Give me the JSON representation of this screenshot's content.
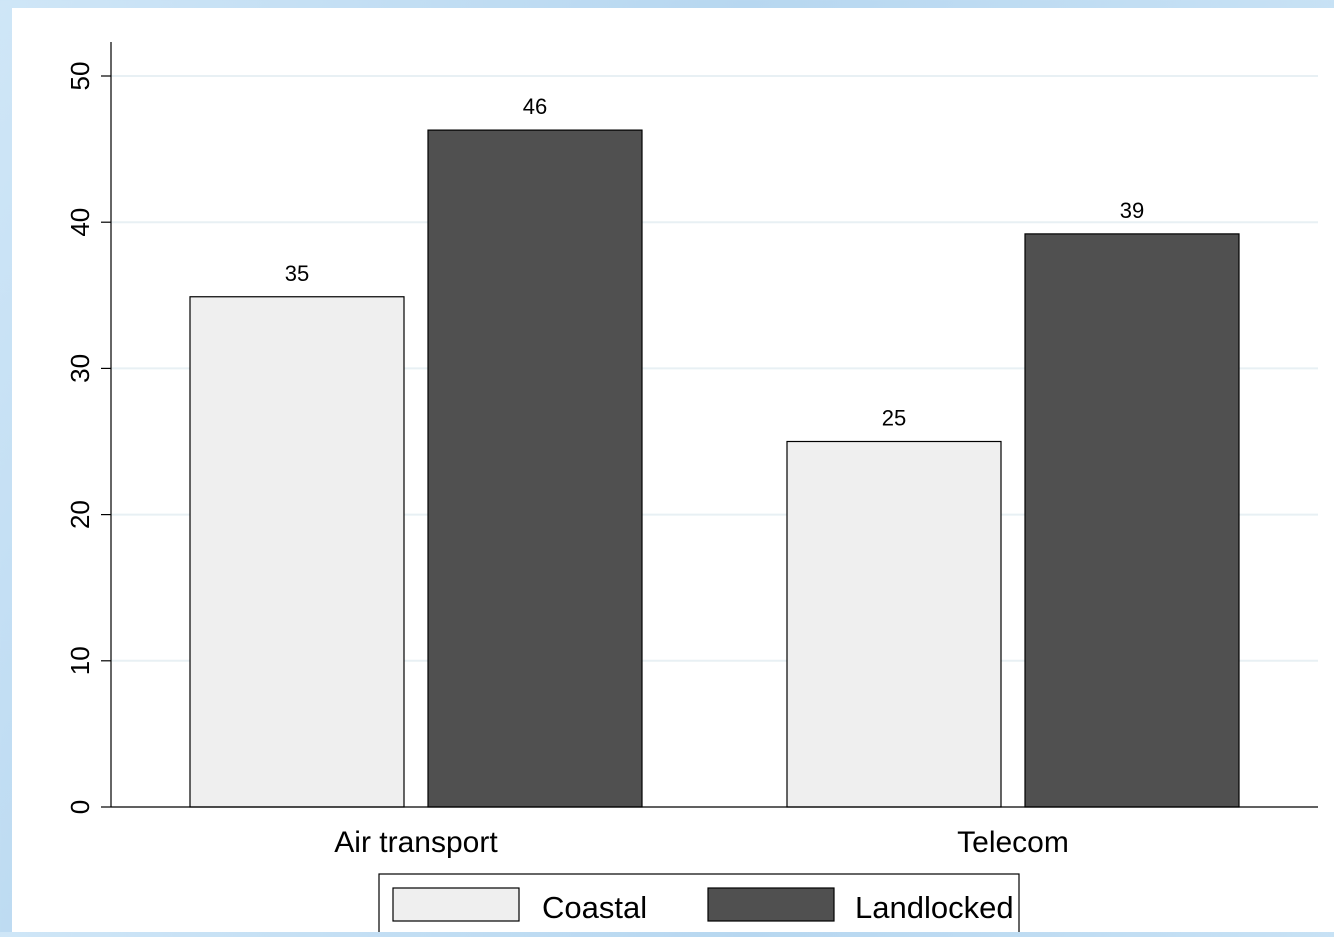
{
  "chart_data": {
    "type": "bar",
    "categories": [
      "Air transport",
      "Telecom"
    ],
    "series": [
      {
        "name": "Coastal",
        "values": [
          35,
          25
        ],
        "labels": [
          "35",
          "25"
        ],
        "color": "#efefef"
      },
      {
        "name": "Landlocked",
        "values": [
          46,
          39
        ],
        "labels": [
          "46",
          "39"
        ],
        "color": "#505050"
      }
    ],
    "exact_values": [
      [
        34.9,
        25.0
      ],
      [
        46.3,
        39.2
      ]
    ],
    "ylim": [
      0,
      50
    ],
    "yticks": [
      "0",
      "10",
      "20",
      "30",
      "40",
      "50"
    ],
    "title": "",
    "xlabel": "",
    "ylabel": "",
    "grid": true,
    "legend_position": "bottom-center"
  },
  "colors": {
    "background": "#ffffff",
    "grid": "#e8f0f4",
    "axis": "#000000"
  }
}
